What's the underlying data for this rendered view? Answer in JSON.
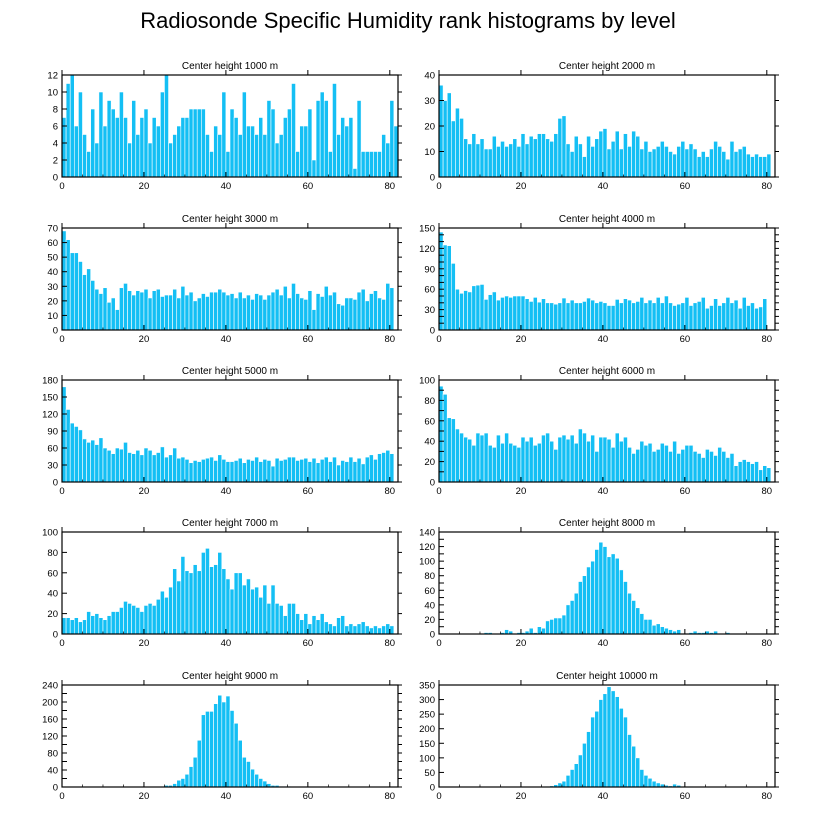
{
  "figure": {
    "title": "Radiosonde Specific Humidity rank histograms by level",
    "bar_color": "#14bff4",
    "bar_edge_color": "#ffffff",
    "axis_color": "#000000"
  },
  "chart_data": [
    {
      "type": "bar",
      "title": "Center height 1000 m",
      "xlim": [
        0,
        82
      ],
      "ylim": [
        0,
        12
      ],
      "xticks": [
        0,
        20,
        40,
        60,
        80
      ],
      "yticks": [
        0,
        2,
        4,
        6,
        8,
        10,
        12
      ],
      "values": [
        7,
        11,
        12,
        6,
        10,
        5,
        3,
        8,
        4,
        10,
        6,
        9,
        8,
        7,
        10,
        7,
        4,
        9,
        5,
        7,
        8,
        4,
        7,
        6,
        10,
        12,
        4,
        5,
        6,
        7,
        7,
        8,
        8,
        8,
        8,
        5,
        3,
        6,
        5,
        10,
        3,
        8,
        7,
        5,
        10,
        6,
        6,
        5,
        7,
        5,
        9,
        8,
        4,
        5,
        7,
        8,
        11,
        3,
        6,
        6,
        8,
        2,
        9,
        10,
        9,
        3,
        11,
        5,
        7,
        6,
        7,
        1,
        9,
        3,
        3,
        3,
        3,
        3,
        5,
        4,
        9,
        6
      ]
    },
    {
      "type": "bar",
      "title": "Center height 2000 m",
      "xlim": [
        0,
        82
      ],
      "ylim": [
        0,
        40
      ],
      "xticks": [
        0,
        20,
        40,
        60,
        80
      ],
      "yticks": [
        0,
        10,
        20,
        30,
        40
      ],
      "values": [
        36,
        30,
        33,
        22,
        27,
        23,
        15,
        13,
        17,
        13,
        15,
        11,
        11,
        16,
        12,
        14,
        12,
        13,
        15,
        12,
        17,
        13,
        16,
        15,
        17,
        17,
        15,
        14,
        17,
        23,
        24,
        13,
        10,
        16,
        13,
        8,
        16,
        12,
        15,
        18,
        19,
        11,
        14,
        18,
        11,
        17,
        12,
        18,
        16,
        11,
        14,
        10,
        11,
        12,
        14,
        12,
        10,
        9,
        12,
        14,
        11,
        13,
        11,
        8,
        10,
        8,
        11,
        14,
        12,
        10,
        7,
        14,
        10,
        11,
        12,
        9,
        8,
        9,
        8,
        8,
        9
      ]
    },
    {
      "type": "bar",
      "title": "Center height 3000 m",
      "xlim": [
        0,
        82
      ],
      "ylim": [
        0,
        70
      ],
      "xticks": [
        0,
        20,
        40,
        60,
        80
      ],
      "yticks": [
        0,
        10,
        20,
        30,
        40,
        50,
        60,
        70
      ],
      "values": [
        68,
        62,
        53,
        53,
        47,
        38,
        42,
        34,
        28,
        25,
        29,
        19,
        22,
        14,
        29,
        32,
        27,
        24,
        27,
        26,
        28,
        22,
        27,
        28,
        23,
        24,
        24,
        28,
        22,
        30,
        24,
        26,
        20,
        22,
        25,
        23,
        26,
        26,
        28,
        26,
        24,
        25,
        22,
        26,
        22,
        24,
        21,
        25,
        24,
        21,
        24,
        26,
        28,
        24,
        30,
        22,
        32,
        25,
        22,
        21,
        27,
        14,
        25,
        23,
        30,
        24,
        26,
        18,
        17,
        22,
        22,
        21,
        26,
        28,
        20,
        25,
        27,
        22,
        21,
        32,
        29
      ]
    },
    {
      "type": "bar",
      "title": "Center height 4000 m",
      "xlim": [
        0,
        82
      ],
      "ylim": [
        0,
        150
      ],
      "xticks": [
        0,
        20,
        40,
        60,
        80
      ],
      "yticks": [
        0,
        10,
        20,
        30,
        40,
        50,
        60,
        70,
        80,
        90,
        100,
        110,
        120,
        130,
        140,
        150
      ],
      "ytick_labels": [
        "0",
        "",
        "",
        "30",
        "",
        "",
        "60",
        "",
        "",
        "90",
        "",
        "",
        "120",
        "",
        "",
        "150"
      ],
      "values": [
        144,
        125,
        124,
        98,
        60,
        54,
        58,
        56,
        65,
        66,
        67,
        45,
        52,
        56,
        44,
        48,
        50,
        48,
        50,
        50,
        50,
        46,
        42,
        48,
        41,
        46,
        40,
        40,
        38,
        40,
        47,
        40,
        44,
        40,
        40,
        42,
        47,
        44,
        40,
        42,
        40,
        36,
        36,
        45,
        40,
        46,
        44,
        40,
        42,
        48,
        40,
        44,
        40,
        48,
        40,
        50,
        40,
        36,
        38,
        40,
        48,
        36,
        40,
        42,
        48,
        32,
        36,
        46,
        36,
        40,
        48,
        40,
        44,
        32,
        48,
        36,
        40,
        32,
        34,
        46
      ]
    },
    {
      "type": "bar",
      "title": "Center height 5000 m",
      "xlim": [
        0,
        82
      ],
      "ylim": [
        0,
        180
      ],
      "xticks": [
        0,
        20,
        40,
        60,
        80
      ],
      "yticks": [
        0,
        30,
        60,
        90,
        120,
        150,
        180
      ],
      "values": [
        168,
        128,
        104,
        98,
        92,
        76,
        70,
        74,
        66,
        78,
        60,
        56,
        50,
        60,
        58,
        70,
        52,
        50,
        56,
        48,
        60,
        56,
        48,
        52,
        62,
        44,
        48,
        60,
        42,
        44,
        40,
        34,
        38,
        36,
        40,
        42,
        44,
        38,
        48,
        40,
        36,
        36,
        38,
        42,
        34,
        40,
        38,
        44,
        36,
        40,
        38,
        28,
        42,
        38,
        40,
        44,
        44,
        38,
        40,
        42,
        36,
        42,
        34,
        40,
        44,
        36,
        44,
        30,
        38,
        36,
        44,
        36,
        42,
        32,
        44,
        48,
        40,
        50,
        52,
        56,
        50
      ]
    },
    {
      "type": "bar",
      "title": "Center height 6000 m",
      "xlim": [
        0,
        82
      ],
      "ylim": [
        0,
        100
      ],
      "xticks": [
        0,
        20,
        40,
        60,
        80
      ],
      "yticks": [
        0,
        10,
        20,
        30,
        40,
        50,
        60,
        70,
        80,
        90,
        100
      ],
      "ytick_labels": [
        "0",
        "",
        "20",
        "",
        "40",
        "",
        "60",
        "",
        "80",
        "",
        "100"
      ],
      "values": [
        94,
        86,
        63,
        62,
        52,
        48,
        44,
        42,
        36,
        48,
        46,
        48,
        36,
        34,
        46,
        38,
        48,
        38,
        36,
        34,
        44,
        40,
        44,
        36,
        38,
        46,
        48,
        40,
        32,
        44,
        46,
        42,
        46,
        38,
        52,
        48,
        40,
        46,
        30,
        44,
        44,
        42,
        34,
        48,
        40,
        44,
        34,
        28,
        32,
        40,
        36,
        38,
        30,
        32,
        38,
        36,
        30,
        40,
        28,
        32,
        36,
        36,
        30,
        28,
        24,
        32,
        30,
        26,
        34,
        30,
        24,
        28,
        16,
        20,
        22,
        20,
        18,
        20,
        12,
        16,
        14
      ]
    },
    {
      "type": "bar",
      "title": "Center height 7000 m",
      "xlim": [
        0,
        82
      ],
      "ylim": [
        0,
        100
      ],
      "xticks": [
        0,
        20,
        40,
        60,
        80
      ],
      "yticks": [
        0,
        20,
        40,
        60,
        80,
        100
      ],
      "values": [
        16,
        16,
        14,
        16,
        12,
        14,
        22,
        18,
        20,
        16,
        14,
        18,
        22,
        22,
        26,
        32,
        30,
        28,
        26,
        22,
        28,
        30,
        28,
        34,
        42,
        36,
        46,
        64,
        52,
        76,
        62,
        60,
        68,
        62,
        80,
        84,
        66,
        68,
        80,
        64,
        54,
        44,
        60,
        60,
        48,
        54,
        44,
        46,
        36,
        48,
        30,
        48,
        30,
        28,
        18,
        30,
        30,
        20,
        14,
        20,
        10,
        18,
        14,
        20,
        12,
        10,
        8,
        16,
        18,
        8,
        10,
        8,
        10,
        12,
        8,
        6,
        8,
        6,
        8,
        10,
        8
      ]
    },
    {
      "type": "bar",
      "title": "Center height 8000 m",
      "xlim": [
        0,
        82
      ],
      "ylim": [
        0,
        140
      ],
      "xticks": [
        0,
        20,
        40,
        60,
        80
      ],
      "yticks": [
        0,
        10,
        20,
        30,
        40,
        50,
        60,
        70,
        80,
        90,
        100,
        110,
        120,
        130,
        140
      ],
      "ytick_labels": [
        "0",
        "",
        "20",
        "",
        "40",
        "",
        "60",
        "",
        "80",
        "",
        "100",
        "",
        "120",
        "",
        "140"
      ],
      "values": [
        0,
        0,
        0,
        0,
        0,
        0,
        0,
        0,
        0,
        0,
        0,
        2,
        2,
        0,
        0,
        2,
        6,
        4,
        0,
        2,
        2,
        4,
        8,
        2,
        10,
        8,
        18,
        20,
        22,
        22,
        26,
        40,
        46,
        56,
        72,
        80,
        92,
        100,
        116,
        126,
        120,
        106,
        110,
        104,
        88,
        72,
        56,
        46,
        36,
        28,
        20,
        20,
        12,
        14,
        10,
        8,
        6,
        4,
        6,
        0,
        0,
        2,
        4,
        2,
        2,
        4,
        2,
        4,
        0,
        0,
        2,
        0,
        0,
        0,
        0,
        0,
        0,
        0,
        0,
        0,
        0,
        0
      ]
    },
    {
      "type": "bar",
      "title": "Center height 9000 m",
      "xlim": [
        0,
        82
      ],
      "ylim": [
        0,
        240
      ],
      "xticks": [
        0,
        20,
        40,
        60,
        80
      ],
      "yticks": [
        0,
        20,
        40,
        60,
        80,
        100,
        120,
        140,
        160,
        180,
        200,
        220,
        240
      ],
      "ytick_labels": [
        "0",
        "",
        "40",
        "",
        "80",
        "",
        "120",
        "",
        "160",
        "",
        "200",
        "",
        "240"
      ],
      "values": [
        0,
        0,
        0,
        0,
        0,
        0,
        0,
        0,
        0,
        0,
        0,
        0,
        0,
        0,
        0,
        0,
        0,
        0,
        0,
        0,
        0,
        0,
        0,
        0,
        2,
        4,
        4,
        8,
        16,
        20,
        30,
        48,
        70,
        110,
        170,
        178,
        178,
        196,
        216,
        200,
        214,
        180,
        150,
        110,
        70,
        60,
        42,
        30,
        20,
        14,
        8,
        4,
        4,
        2,
        2,
        2,
        0,
        0,
        0,
        0,
        0,
        0,
        0,
        0,
        0,
        0,
        0,
        0,
        0,
        0,
        0,
        0,
        0,
        0,
        0,
        0,
        0,
        0,
        0,
        0,
        0
      ]
    },
    {
      "type": "bar",
      "title": "Center height 10000 m",
      "xlim": [
        0,
        82
      ],
      "ylim": [
        0,
        350
      ],
      "xticks": [
        0,
        20,
        40,
        60,
        80
      ],
      "yticks": [
        0,
        50,
        100,
        150,
        200,
        250,
        300,
        350
      ],
      "values": [
        0,
        0,
        0,
        0,
        0,
        0,
        0,
        0,
        0,
        0,
        0,
        0,
        0,
        0,
        0,
        0,
        0,
        0,
        0,
        0,
        0,
        0,
        0,
        0,
        0,
        0,
        2,
        4,
        8,
        14,
        20,
        40,
        60,
        80,
        110,
        150,
        190,
        240,
        260,
        300,
        320,
        344,
        330,
        310,
        270,
        240,
        180,
        140,
        100,
        60,
        40,
        30,
        20,
        14,
        10,
        6,
        4,
        10,
        6,
        0,
        0,
        2,
        0,
        0,
        0,
        0,
        0,
        0,
        0,
        0,
        0,
        0,
        0,
        0,
        0,
        0,
        0,
        0,
        0,
        0,
        0
      ]
    }
  ]
}
